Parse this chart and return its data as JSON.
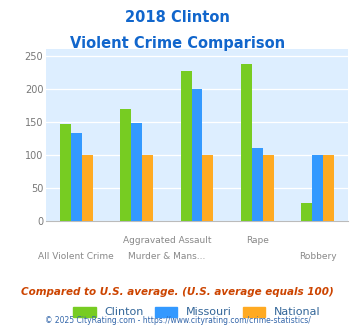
{
  "title_line1": "2018 Clinton",
  "title_line2": "Violent Crime Comparison",
  "series": {
    "Clinton": [
      147,
      170,
      228,
      238,
      27
    ],
    "Missouri": [
      133,
      148,
      200,
      111,
      100
    ],
    "National": [
      100,
      100,
      100,
      100,
      100
    ]
  },
  "colors": {
    "Clinton": "#77cc22",
    "Missouri": "#3399ff",
    "National": "#ffaa22"
  },
  "group_labels_top": [
    "",
    "Aggravated Assault",
    "Assault",
    "Rape",
    ""
  ],
  "group_labels_bot": [
    "All Violent Crime",
    "Murder & Mans...",
    "",
    "Rape",
    "Robbery"
  ],
  "ylim": [
    0,
    260
  ],
  "yticks": [
    0,
    50,
    100,
    150,
    200,
    250
  ],
  "plot_bg": "#ddeeff",
  "title_color": "#1166cc",
  "xlabel_color": "#888888",
  "legend_color": "#336699",
  "footer_text": "Compared to U.S. average. (U.S. average equals 100)",
  "footer_color": "#cc4400",
  "copyright_text": "© 2025 CityRating.com - https://www.cityrating.com/crime-statistics/",
  "copyright_color": "#3366aa"
}
